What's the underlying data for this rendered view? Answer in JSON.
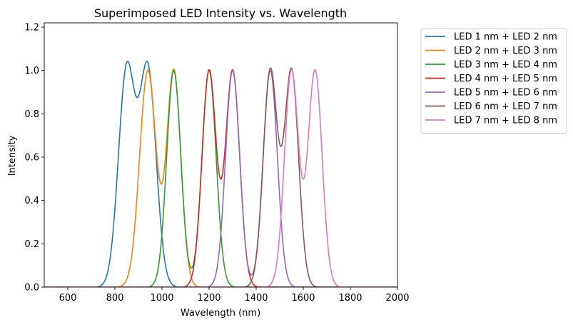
{
  "chart_data": {
    "type": "line",
    "title": "Superimposed LED Intensity vs. Wavelength",
    "xlabel": "Wavelength (nm)",
    "ylabel": "Intensity",
    "xlim": [
      500,
      2000
    ],
    "ylim": [
      0,
      1.22
    ],
    "xticks": [
      600,
      800,
      1000,
      1200,
      1400,
      1600,
      1800,
      2000
    ],
    "yticks": [
      0.0,
      0.2,
      0.4,
      0.6,
      0.8,
      1.0,
      1.2
    ],
    "xtick_labels": [
      "600",
      "800",
      "1000",
      "1200",
      "1400",
      "1600",
      "1800",
      "2000"
    ],
    "ytick_labels": [
      "0.0",
      "0.2",
      "0.4",
      "0.6",
      "0.8",
      "1.0",
      "1.2"
    ],
    "grid": false,
    "legend_position": "outside-right-top",
    "colors": [
      "#1f77b4",
      "#ff7f0e",
      "#2ca02c",
      "#d62728",
      "#9467bd",
      "#8c564b",
      "#e377c2"
    ],
    "series": [
      {
        "name": "LED 1 nm + LED 2 nm",
        "peaks": [
          {
            "center": 850,
            "sigma": 35
          },
          {
            "center": 940,
            "sigma": 35
          }
        ]
      },
      {
        "name": "LED 2 nm + LED 3 nm",
        "peaks": [
          {
            "center": 940,
            "sigma": 35
          },
          {
            "center": 1050,
            "sigma": 30
          }
        ]
      },
      {
        "name": "LED 3 nm + LED 4 nm",
        "peaks": [
          {
            "center": 1050,
            "sigma": 30
          },
          {
            "center": 1200,
            "sigma": 30
          }
        ]
      },
      {
        "name": "LED 4 nm + LED 5 nm",
        "peaks": [
          {
            "center": 1200,
            "sigma": 30
          },
          {
            "center": 1300,
            "sigma": 30
          }
        ]
      },
      {
        "name": "LED 5 nm + LED 6 nm",
        "peaks": [
          {
            "center": 1300,
            "sigma": 30
          },
          {
            "center": 1460,
            "sigma": 30
          }
        ]
      },
      {
        "name": "LED 6 nm + LED 7 nm",
        "peaks": [
          {
            "center": 1460,
            "sigma": 30
          },
          {
            "center": 1550,
            "sigma": 30
          }
        ]
      },
      {
        "name": "LED 7 nm + LED 8 nm",
        "peaks": [
          {
            "center": 1550,
            "sigma": 30
          },
          {
            "center": 1650,
            "sigma": 30
          }
        ]
      }
    ]
  }
}
